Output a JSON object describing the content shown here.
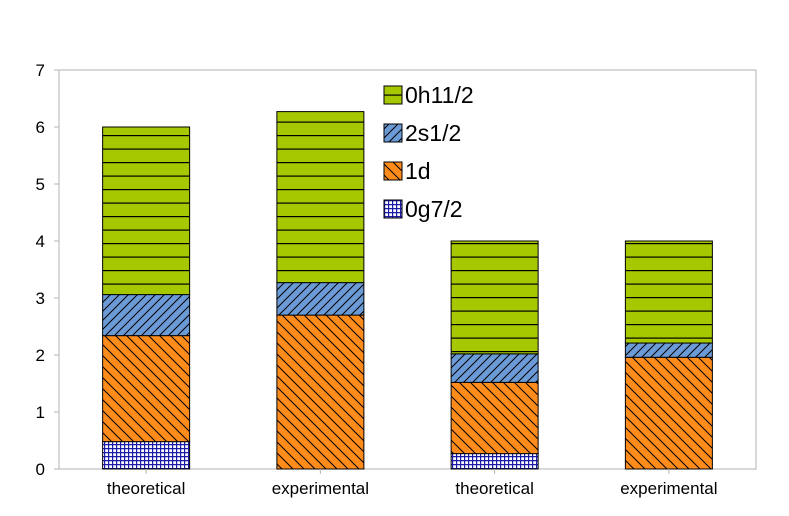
{
  "chart_data": {
    "type": "bar",
    "stacked": true,
    "title": "",
    "xlabel": "",
    "ylabel": "",
    "ylim": [
      0,
      7
    ],
    "yticks": [
      0,
      1,
      2,
      3,
      4,
      5,
      6,
      7
    ],
    "grid": false,
    "legend_position": "top-center",
    "categories": [
      "theoretical",
      "experimental",
      "theoretical",
      "experimental"
    ],
    "series": [
      {
        "name": "0g7/2",
        "values": [
          0.48,
          0.0,
          0.27,
          0.0
        ],
        "color": "#1a1aa6",
        "pattern": "grid"
      },
      {
        "name": "1d",
        "values": [
          1.86,
          2.7,
          1.25,
          1.96
        ],
        "color": "#ff8c1a",
        "pattern": "diagonal-back"
      },
      {
        "name": "2s1/2",
        "values": [
          0.72,
          0.57,
          0.5,
          0.25
        ],
        "color": "#6b9bd6",
        "pattern": "diagonal-forward"
      },
      {
        "name": "0h11/2",
        "values": [
          2.94,
          3.0,
          1.98,
          1.79
        ],
        "color": "#a6c800",
        "pattern": "horizontal"
      }
    ],
    "legend_order": [
      "0h11/2",
      "2s1/2",
      "1d",
      "0g7/2"
    ]
  }
}
